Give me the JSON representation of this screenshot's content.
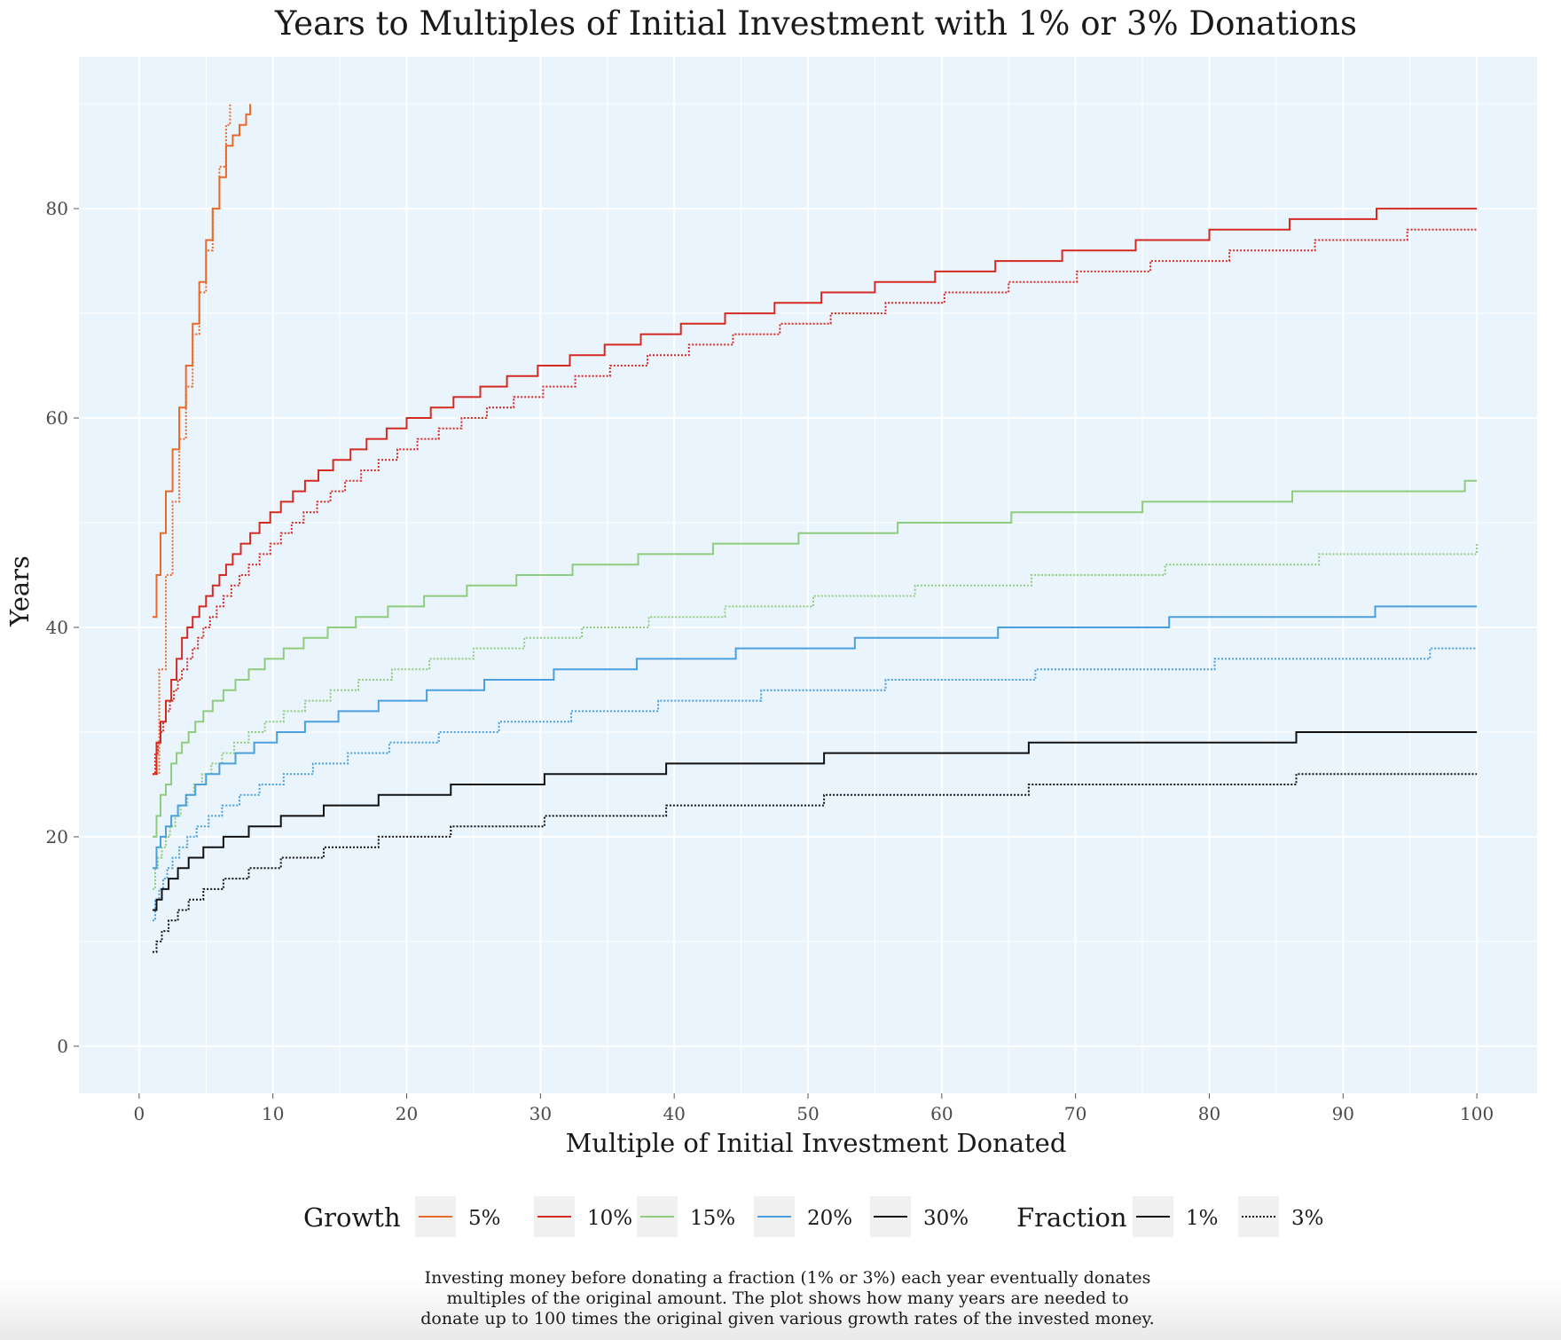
{
  "chart_data": {
    "type": "line",
    "title": "Years to Multiples of Initial Investment with 1% or 3% Donations",
    "xlabel": "Multiple of Initial Investment Donated",
    "ylabel": "Years",
    "xlim": [
      -4.5,
      104.5
    ],
    "ylim": [
      -4.5,
      94.5
    ],
    "x_ticks": [
      0,
      10,
      20,
      30,
      40,
      50,
      60,
      70,
      80,
      90,
      100
    ],
    "y_ticks": [
      0,
      20,
      40,
      60,
      80
    ],
    "background": "#eaf4fc",
    "grid": true,
    "line_shape": "step",
    "legend": {
      "position": "bottom",
      "growth": {
        "title": "Growth",
        "items": [
          {
            "label": "5%",
            "color": "#e86a2a"
          },
          {
            "label": "10%",
            "color": "#d42a22"
          },
          {
            "label": "15%",
            "color": "#8fcc7c"
          },
          {
            "label": "20%",
            "color": "#4a9fdc"
          },
          {
            "label": "30%",
            "color": "#111111"
          }
        ]
      },
      "fraction": {
        "title": "Fraction",
        "items": [
          {
            "label": "1%",
            "style": "solid"
          },
          {
            "label": "3%",
            "style": "dotted"
          }
        ]
      }
    },
    "series": [
      {
        "growth": "5%",
        "fraction": "1%",
        "color": "#e86a2a",
        "style": "solid",
        "points": [
          [
            1,
            41
          ],
          [
            1.3,
            45
          ],
          [
            1.6,
            49
          ],
          [
            2,
            53
          ],
          [
            2.5,
            57
          ],
          [
            3,
            61
          ],
          [
            3.5,
            65
          ],
          [
            4,
            69
          ],
          [
            4.5,
            73
          ],
          [
            5,
            77
          ],
          [
            5.5,
            80
          ],
          [
            6,
            83
          ],
          [
            6.5,
            86
          ],
          [
            7,
            87
          ],
          [
            7.5,
            88
          ],
          [
            8,
            89
          ],
          [
            8.3,
            90
          ]
        ]
      },
      {
        "growth": "5%",
        "fraction": "3%",
        "color": "#e86a2a",
        "style": "dotted",
        "points": [
          [
            1,
            26
          ],
          [
            1.5,
            36
          ],
          [
            2,
            45
          ],
          [
            2.5,
            52
          ],
          [
            3,
            58
          ],
          [
            3.5,
            63
          ],
          [
            4,
            68
          ],
          [
            4.5,
            72
          ],
          [
            5,
            76
          ],
          [
            5.5,
            80
          ],
          [
            6,
            84
          ],
          [
            6.5,
            88
          ],
          [
            6.8,
            90
          ]
        ]
      },
      {
        "growth": "10%",
        "fraction": "1%",
        "color": "#d42a22",
        "style": "solid",
        "points": [
          [
            1,
            26
          ],
          [
            1.3,
            29
          ],
          [
            1.6,
            31
          ],
          [
            2,
            33
          ],
          [
            2.4,
            35
          ],
          [
            2.8,
            37
          ],
          [
            3.2,
            39
          ],
          [
            3.6,
            40
          ],
          [
            4,
            41
          ],
          [
            4.5,
            42
          ],
          [
            5,
            43
          ],
          [
            5.5,
            44
          ],
          [
            6,
            45
          ],
          [
            6.5,
            46
          ],
          [
            7,
            47
          ],
          [
            7.6,
            48
          ],
          [
            8.3,
            49
          ],
          [
            9,
            50
          ],
          [
            9.8,
            51
          ],
          [
            10.6,
            52
          ],
          [
            11.5,
            53
          ],
          [
            12.4,
            54
          ],
          [
            13.4,
            55
          ],
          [
            14.5,
            56
          ],
          [
            15.8,
            57
          ],
          [
            17,
            58
          ],
          [
            18.5,
            59
          ],
          [
            20,
            60
          ],
          [
            21.8,
            61
          ],
          [
            23.5,
            62
          ],
          [
            25.5,
            63
          ],
          [
            27.5,
            64
          ],
          [
            29.8,
            65
          ],
          [
            32.2,
            66
          ],
          [
            34.8,
            67
          ],
          [
            37.5,
            68
          ],
          [
            40.5,
            69
          ],
          [
            43.8,
            70
          ],
          [
            47.5,
            71
          ],
          [
            51,
            72
          ],
          [
            55,
            73
          ],
          [
            59.5,
            74
          ],
          [
            64,
            75
          ],
          [
            69,
            76
          ],
          [
            74.5,
            77
          ],
          [
            80,
            78
          ],
          [
            86,
            79
          ],
          [
            92.5,
            80
          ],
          [
            100,
            80
          ]
        ]
      },
      {
        "growth": "10%",
        "fraction": "3%",
        "color": "#d42a22",
        "style": "dotted",
        "points": [
          [
            1,
            26
          ],
          [
            1.2,
            28
          ],
          [
            1.4,
            29
          ],
          [
            1.6,
            30
          ],
          [
            1.8,
            31
          ],
          [
            2,
            32
          ],
          [
            2.3,
            33
          ],
          [
            2.6,
            34
          ],
          [
            2.9,
            35
          ],
          [
            3.2,
            36
          ],
          [
            3.6,
            37
          ],
          [
            4,
            38
          ],
          [
            4.4,
            39
          ],
          [
            4.8,
            40
          ],
          [
            5.3,
            41
          ],
          [
            5.8,
            42
          ],
          [
            6.3,
            43
          ],
          [
            6.9,
            44
          ],
          [
            7.5,
            45
          ],
          [
            8.2,
            46
          ],
          [
            9,
            47
          ],
          [
            9.8,
            48
          ],
          [
            10.6,
            49
          ],
          [
            11.4,
            50
          ],
          [
            12.3,
            51
          ],
          [
            13.3,
            52
          ],
          [
            14.3,
            53
          ],
          [
            15.4,
            54
          ],
          [
            16.6,
            55
          ],
          [
            17.9,
            56
          ],
          [
            19.3,
            57
          ],
          [
            20.8,
            58
          ],
          [
            22.4,
            59
          ],
          [
            24.1,
            60
          ],
          [
            26,
            61
          ],
          [
            28,
            62
          ],
          [
            30.2,
            63
          ],
          [
            32.6,
            64
          ],
          [
            35.2,
            65
          ],
          [
            38,
            66
          ],
          [
            41.1,
            67
          ],
          [
            44.4,
            68
          ],
          [
            47.9,
            69
          ],
          [
            51.7,
            70
          ],
          [
            55.8,
            71
          ],
          [
            60.2,
            72
          ],
          [
            65,
            73
          ],
          [
            70.1,
            74
          ],
          [
            75.6,
            75
          ],
          [
            81.5,
            76
          ],
          [
            87.9,
            77
          ],
          [
            94.8,
            78
          ],
          [
            100,
            78
          ]
        ]
      },
      {
        "growth": "15%",
        "fraction": "1%",
        "color": "#8fcc7c",
        "style": "solid",
        "points": [
          [
            1,
            20
          ],
          [
            1.3,
            22
          ],
          [
            1.6,
            24
          ],
          [
            2,
            25
          ],
          [
            2.4,
            27
          ],
          [
            2.8,
            28
          ],
          [
            3.2,
            29
          ],
          [
            3.7,
            30
          ],
          [
            4.2,
            31
          ],
          [
            4.8,
            32
          ],
          [
            5.5,
            33
          ],
          [
            6.3,
            34
          ],
          [
            7.2,
            35
          ],
          [
            8.2,
            36
          ],
          [
            9.4,
            37
          ],
          [
            10.8,
            38
          ],
          [
            12.3,
            39
          ],
          [
            14.1,
            40
          ],
          [
            16.2,
            41
          ],
          [
            18.6,
            42
          ],
          [
            21.3,
            43
          ],
          [
            24.5,
            44
          ],
          [
            28.2,
            45
          ],
          [
            32.4,
            46
          ],
          [
            37.3,
            47
          ],
          [
            42.9,
            48
          ],
          [
            49.3,
            49
          ],
          [
            56.7,
            50
          ],
          [
            65.2,
            51
          ],
          [
            75,
            52
          ],
          [
            86.2,
            53
          ],
          [
            99.1,
            54
          ],
          [
            100,
            54
          ]
        ]
      },
      {
        "growth": "15%",
        "fraction": "3%",
        "color": "#8fcc7c",
        "style": "dotted",
        "points": [
          [
            1,
            15
          ],
          [
            1.2,
            17
          ],
          [
            1.4,
            18
          ],
          [
            1.7,
            19
          ],
          [
            2,
            20
          ],
          [
            2.3,
            21
          ],
          [
            2.7,
            22
          ],
          [
            3.1,
            23
          ],
          [
            3.6,
            24
          ],
          [
            4.1,
            25
          ],
          [
            4.7,
            26
          ],
          [
            5.4,
            27
          ],
          [
            6.2,
            28
          ],
          [
            7.1,
            29
          ],
          [
            8.2,
            30
          ],
          [
            9.4,
            31
          ],
          [
            10.8,
            32
          ],
          [
            12.4,
            33
          ],
          [
            14.3,
            34
          ],
          [
            16.4,
            35
          ],
          [
            18.9,
            36
          ],
          [
            21.7,
            37
          ],
          [
            25,
            38
          ],
          [
            28.8,
            39
          ],
          [
            33.1,
            40
          ],
          [
            38.1,
            41
          ],
          [
            43.8,
            42
          ],
          [
            50.4,
            43
          ],
          [
            58,
            44
          ],
          [
            66.7,
            45
          ],
          [
            76.7,
            46
          ],
          [
            88.2,
            47
          ],
          [
            100,
            48
          ]
        ]
      },
      {
        "growth": "20%",
        "fraction": "1%",
        "color": "#4a9fdc",
        "style": "solid",
        "points": [
          [
            1,
            17
          ],
          [
            1.3,
            19
          ],
          [
            1.6,
            20
          ],
          [
            2,
            21
          ],
          [
            2.4,
            22
          ],
          [
            2.9,
            23
          ],
          [
            3.5,
            24
          ],
          [
            4.2,
            25
          ],
          [
            5,
            26
          ],
          [
            6,
            27
          ],
          [
            7.2,
            28
          ],
          [
            8.6,
            29
          ],
          [
            10.3,
            30
          ],
          [
            12.4,
            31
          ],
          [
            14.9,
            32
          ],
          [
            17.9,
            33
          ],
          [
            21.5,
            34
          ],
          [
            25.8,
            35
          ],
          [
            31,
            36
          ],
          [
            37.2,
            37
          ],
          [
            44.6,
            38
          ],
          [
            53.5,
            39
          ],
          [
            64.2,
            40
          ],
          [
            77,
            41
          ],
          [
            92.4,
            42
          ],
          [
            100,
            42
          ]
        ]
      },
      {
        "growth": "20%",
        "fraction": "3%",
        "color": "#4a9fdc",
        "style": "dotted",
        "points": [
          [
            1,
            12
          ],
          [
            1.2,
            14
          ],
          [
            1.5,
            15
          ],
          [
            1.8,
            16
          ],
          [
            2.1,
            17
          ],
          [
            2.5,
            18
          ],
          [
            3,
            19
          ],
          [
            3.6,
            20
          ],
          [
            4.3,
            21
          ],
          [
            5.2,
            22
          ],
          [
            6.2,
            23
          ],
          [
            7.5,
            24
          ],
          [
            9,
            25
          ],
          [
            10.8,
            26
          ],
          [
            13,
            27
          ],
          [
            15.6,
            28
          ],
          [
            18.7,
            29
          ],
          [
            22.4,
            30
          ],
          [
            26.9,
            31
          ],
          [
            32.3,
            32
          ],
          [
            38.8,
            33
          ],
          [
            46.5,
            34
          ],
          [
            55.8,
            35
          ],
          [
            67,
            36
          ],
          [
            80.4,
            37
          ],
          [
            96.5,
            38
          ],
          [
            100,
            38
          ]
        ]
      },
      {
        "growth": "30%",
        "fraction": "1%",
        "color": "#111111",
        "style": "solid",
        "points": [
          [
            1,
            13
          ],
          [
            1.3,
            14
          ],
          [
            1.7,
            15
          ],
          [
            2.2,
            16
          ],
          [
            2.9,
            17
          ],
          [
            3.7,
            18
          ],
          [
            4.8,
            19
          ],
          [
            6.3,
            20
          ],
          [
            8.2,
            21
          ],
          [
            10.6,
            22
          ],
          [
            13.8,
            23
          ],
          [
            17.9,
            24
          ],
          [
            23.3,
            25
          ],
          [
            30.3,
            26
          ],
          [
            39.4,
            27
          ],
          [
            51.2,
            28
          ],
          [
            66.5,
            29
          ],
          [
            86.5,
            30
          ],
          [
            100,
            30
          ]
        ]
      },
      {
        "growth": "30%",
        "fraction": "3%",
        "color": "#111111",
        "style": "dotted",
        "points": [
          [
            1,
            9
          ],
          [
            1.3,
            10
          ],
          [
            1.7,
            11
          ],
          [
            2.2,
            12
          ],
          [
            2.9,
            13
          ],
          [
            3.7,
            14
          ],
          [
            4.8,
            15
          ],
          [
            6.3,
            16
          ],
          [
            8.2,
            17
          ],
          [
            10.6,
            18
          ],
          [
            13.8,
            19
          ],
          [
            17.9,
            20
          ],
          [
            23.3,
            21
          ],
          [
            30.3,
            22
          ],
          [
            39.4,
            23
          ],
          [
            51.2,
            24
          ],
          [
            66.5,
            25
          ],
          [
            86.5,
            26
          ],
          [
            100,
            26
          ]
        ]
      }
    ]
  },
  "caption": [
    "Investing money before donating a fraction (1% or 3%) each year eventually donates",
    "multiples of the original amount. The plot shows how many years are needed to",
    "donate up to 100 times the original given various growth rates of the invested money."
  ]
}
